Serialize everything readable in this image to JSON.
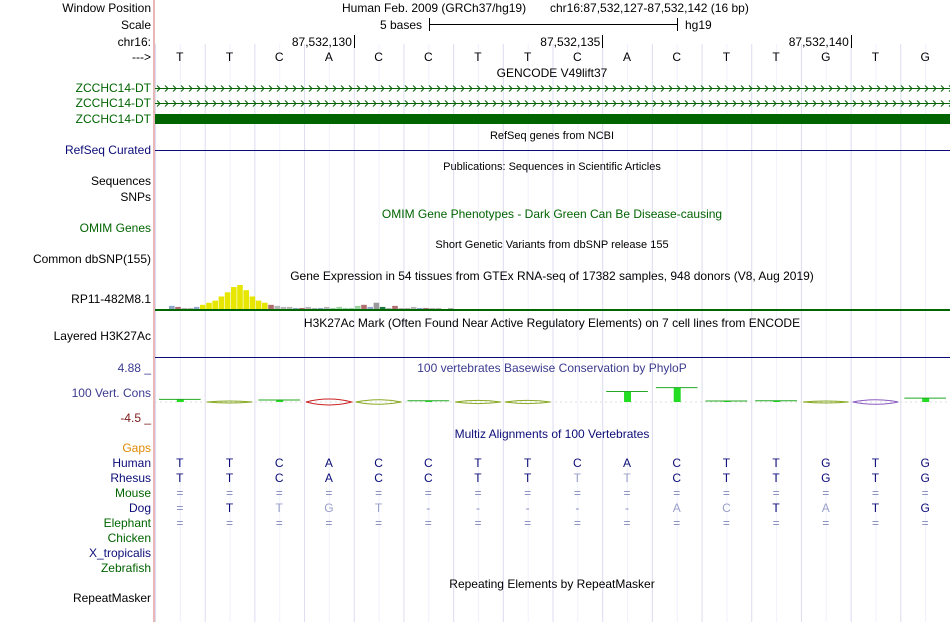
{
  "colors": {
    "gencode": "#006400",
    "refseq": "#0c0c78",
    "omim": "#006400",
    "phylop": "#3b3b8f",
    "phylop_neg": "#7b1a1a",
    "gaps": "#e08a00",
    "divider": "#e8b8b8"
  },
  "labels": {
    "window_position": "Window Position",
    "scale": "Scale",
    "chrom": "chr16:",
    "strand": "--->",
    "gencode_1": "ZCCHC14-DT",
    "gencode_2": "ZCCHC14-DT",
    "gencode_3": "ZCCHC14-DT",
    "refseq": "RefSeq Curated",
    "sequences": "Sequences",
    "snps": "SNPs",
    "omim": "OMIM Genes",
    "dbsnp": "Common dbSNP(155)",
    "gtex": "RP11-482M8.1",
    "h3k27ac": "Layered H3K27Ac",
    "phylop_max": "4.88 _",
    "phylop": "100 Vert. Cons",
    "phylop_min": "-4.5 _",
    "gaps": "Gaps",
    "species": [
      "Human",
      "Rhesus",
      "Mouse",
      "Dog",
      "Elephant",
      "Chicken",
      "X_tropicalis",
      "Zebrafish"
    ],
    "repeatmasker": "RepeatMasker"
  },
  "header": {
    "assembly": "Human Feb. 2009 (GRCh37/hg19)",
    "position": "chr16:87,532,127-87,532,142 (16 bp)",
    "scale_text": "5 bases",
    "scale_db": "hg19",
    "coords": [
      "87,532,130",
      "87,532,135",
      "87,532,140"
    ]
  },
  "bases": [
    "T",
    "T",
    "C",
    "A",
    "C",
    "C",
    "T",
    "T",
    "C",
    "A",
    "C",
    "T",
    "T",
    "G",
    "T",
    "G"
  ],
  "tracks": {
    "gencode": "GENCODE V49lift37",
    "refseq": "RefSeq genes from NCBI",
    "publications": "Publications: Sequences in Scientific Articles",
    "omim": "OMIM Gene Phenotypes - Dark Green Can Be Disease-causing",
    "dbsnp": "Short Genetic Variants from dbSNP release 155",
    "gtex": "Gene Expression in 54 tissues from GTEx RNA-seq of 17382 samples, 948 donors (V8, Aug 2019)",
    "h3k27ac": "H3K27Ac Mark (Often Found Near Active Regulatory Elements) on 7 cell lines from ENCODE",
    "phylop": "100 vertebrates Basewise Conservation by PhyloP",
    "multiz": "Multiz Alignments of 100 Vertebrates",
    "repeatmasker": "Repeating Elements by RepeatMasker"
  },
  "alignment": {
    "Human": [
      "T",
      "T",
      "C",
      "A",
      "C",
      "C",
      "T",
      "T",
      "C",
      "A",
      "C",
      "T",
      "T",
      "G",
      "T",
      "G"
    ],
    "Rhesus": [
      "T",
      "T",
      "C",
      "A",
      "C",
      "C",
      "T",
      "T",
      "T",
      "T",
      "C",
      "T",
      "T",
      "G",
      "T",
      "G"
    ],
    "Mouse": [
      "=",
      "=",
      "=",
      "=",
      "=",
      "=",
      "=",
      "=",
      "=",
      "=",
      "=",
      "=",
      "=",
      "=",
      "=",
      "="
    ],
    "Dog": [
      "=",
      "T",
      "T",
      "G",
      "T",
      "-",
      "-",
      "-",
      "-",
      "-",
      "A",
      "C",
      "T",
      "A",
      "T",
      "G"
    ],
    "Elephant": [
      "=",
      "=",
      "=",
      "=",
      "=",
      "=",
      "=",
      "=",
      "=",
      "=",
      "=",
      "=",
      "=",
      "=",
      "=",
      "="
    ]
  },
  "gtex_values": [
    3,
    2,
    1,
    1,
    2,
    4,
    6,
    8,
    12,
    16,
    21,
    23,
    18,
    12,
    8,
    6,
    4,
    3,
    2,
    2,
    1,
    1,
    2,
    1,
    1,
    2,
    1,
    2,
    1,
    1,
    3,
    4,
    2,
    6,
    2,
    1,
    3,
    1,
    1,
    2,
    1,
    1,
    1,
    1,
    0,
    1
  ],
  "phylop_values": [
    0.4,
    -0.3,
    0.3,
    -0.9,
    -0.7,
    0.2,
    -0.5,
    -0.5,
    0,
    1.6,
    2.2,
    0.1,
    0.2,
    -0.3,
    -0.7,
    0.6
  ]
}
